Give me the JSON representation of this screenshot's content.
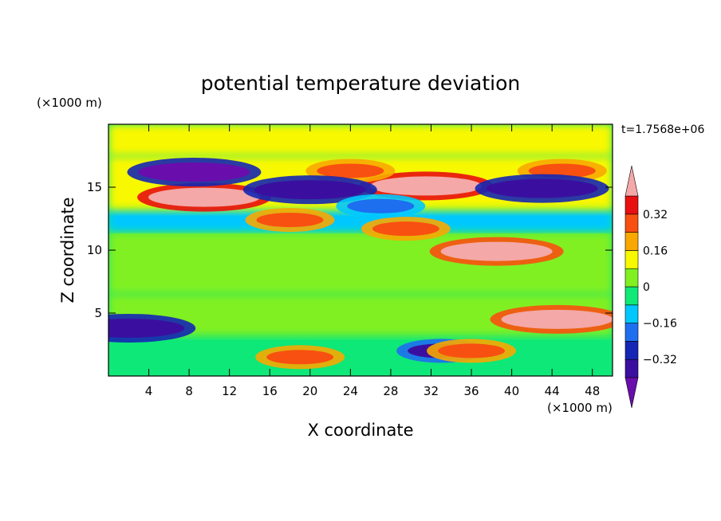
{
  "chart_data": {
    "type": "heatmap",
    "title": "potential temperature deviation",
    "xlabel": "X coordinate",
    "ylabel": "Z coordinate",
    "x_unit": "(×1000 m)",
    "y_unit": "(×1000 m)",
    "time_label": "t=1.7568e+06",
    "xlim": [
      0,
      50
    ],
    "ylim": [
      0,
      20
    ],
    "x_ticks": [
      4,
      8,
      12,
      16,
      20,
      24,
      28,
      32,
      36,
      40,
      44,
      48
    ],
    "y_ticks": [
      5,
      10,
      15
    ],
    "x_tick_labels": [
      "4",
      "8",
      "12",
      "16",
      "20",
      "24",
      "28",
      "32",
      "36",
      "40",
      "44",
      "48"
    ],
    "y_tick_labels": [
      "5",
      "10",
      "15"
    ],
    "colorbar": {
      "levels": [
        -0.4,
        -0.32,
        -0.24,
        -0.16,
        -0.08,
        0,
        0.08,
        0.16,
        0.24,
        0.32,
        0.4
      ],
      "colors": [
        "#6a0dad",
        "#3a0fa0",
        "#1426b4",
        "#1e6ef0",
        "#00c8ff",
        "#10e878",
        "#80f020",
        "#f8f800",
        "#f8a800",
        "#f85010",
        "#e81010",
        "#f4a8a8"
      ],
      "extend": "both",
      "tick_values": [
        0.32,
        0.16,
        0,
        -0.16,
        -0.32
      ],
      "tick_labels": [
        "0.32",
        "0.16",
        "0",
        "−0.16",
        "−0.32"
      ]
    },
    "features": [
      {
        "x": 9.5,
        "z": 14.2,
        "value": 0.45
      },
      {
        "x": 31.5,
        "z": 15.1,
        "value": 0.44
      },
      {
        "x": 38.5,
        "z": 9.9,
        "value": 0.42
      },
      {
        "x": 24.0,
        "z": 16.3,
        "value": 0.3
      },
      {
        "x": 45.0,
        "z": 16.3,
        "value": 0.3
      },
      {
        "x": 18.0,
        "z": 12.4,
        "value": 0.3
      },
      {
        "x": 29.5,
        "z": 11.7,
        "value": 0.3
      },
      {
        "x": 8.5,
        "z": 16.2,
        "value": -0.42
      },
      {
        "x": 20.0,
        "z": 14.8,
        "value": -0.4
      },
      {
        "x": 43.0,
        "z": 14.9,
        "value": -0.4
      },
      {
        "x": 27.0,
        "z": 13.5,
        "value": -0.2
      },
      {
        "x": 2.0,
        "z": 3.8,
        "value": -0.38
      },
      {
        "x": 33.0,
        "z": 2.0,
        "value": -0.35
      },
      {
        "x": 19.0,
        "z": 1.5,
        "value": 0.28
      },
      {
        "x": 36.0,
        "z": 2.0,
        "value": 0.3
      },
      {
        "x": 44.5,
        "z": 4.5,
        "value": 0.4
      }
    ]
  }
}
